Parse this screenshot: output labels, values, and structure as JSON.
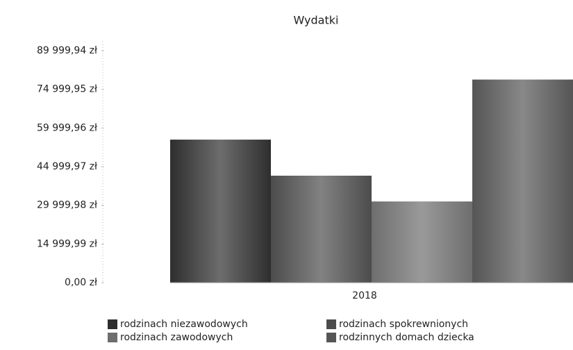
{
  "chart_data": {
    "type": "bar",
    "title": "Wydatki",
    "categories": [
      "2018"
    ],
    "series": [
      {
        "name": "rodzinach niezawodowych",
        "color": "#2e2e2e",
        "values": [
          55500
        ]
      },
      {
        "name": "rodzinach spokrewnionych",
        "color": "#4c4c4c",
        "values": [
          41500
        ]
      },
      {
        "name": "rodzinach zawodowych",
        "color": "#6e6e6e",
        "values": [
          31500
        ]
      },
      {
        "name": "rodzinnych domach dziecka",
        "color": "#555555",
        "values": [
          78800
        ]
      }
    ],
    "ylim": [
      0,
      89999.94
    ],
    "yticks": [
      {
        "value": 0,
        "label": "0,00 zł"
      },
      {
        "value": 14999.99,
        "label": "14 999,99 zł"
      },
      {
        "value": 29999.98,
        "label": "29 999,98 zł"
      },
      {
        "value": 44999.97,
        "label": "44 999,97 zł"
      },
      {
        "value": 59999.96,
        "label": "59 999,96 zł"
      },
      {
        "value": 74999.95,
        "label": "74 999,95 zł"
      },
      {
        "value": 89999.94,
        "label": "89 999,94 zł"
      }
    ],
    "grid": false
  }
}
